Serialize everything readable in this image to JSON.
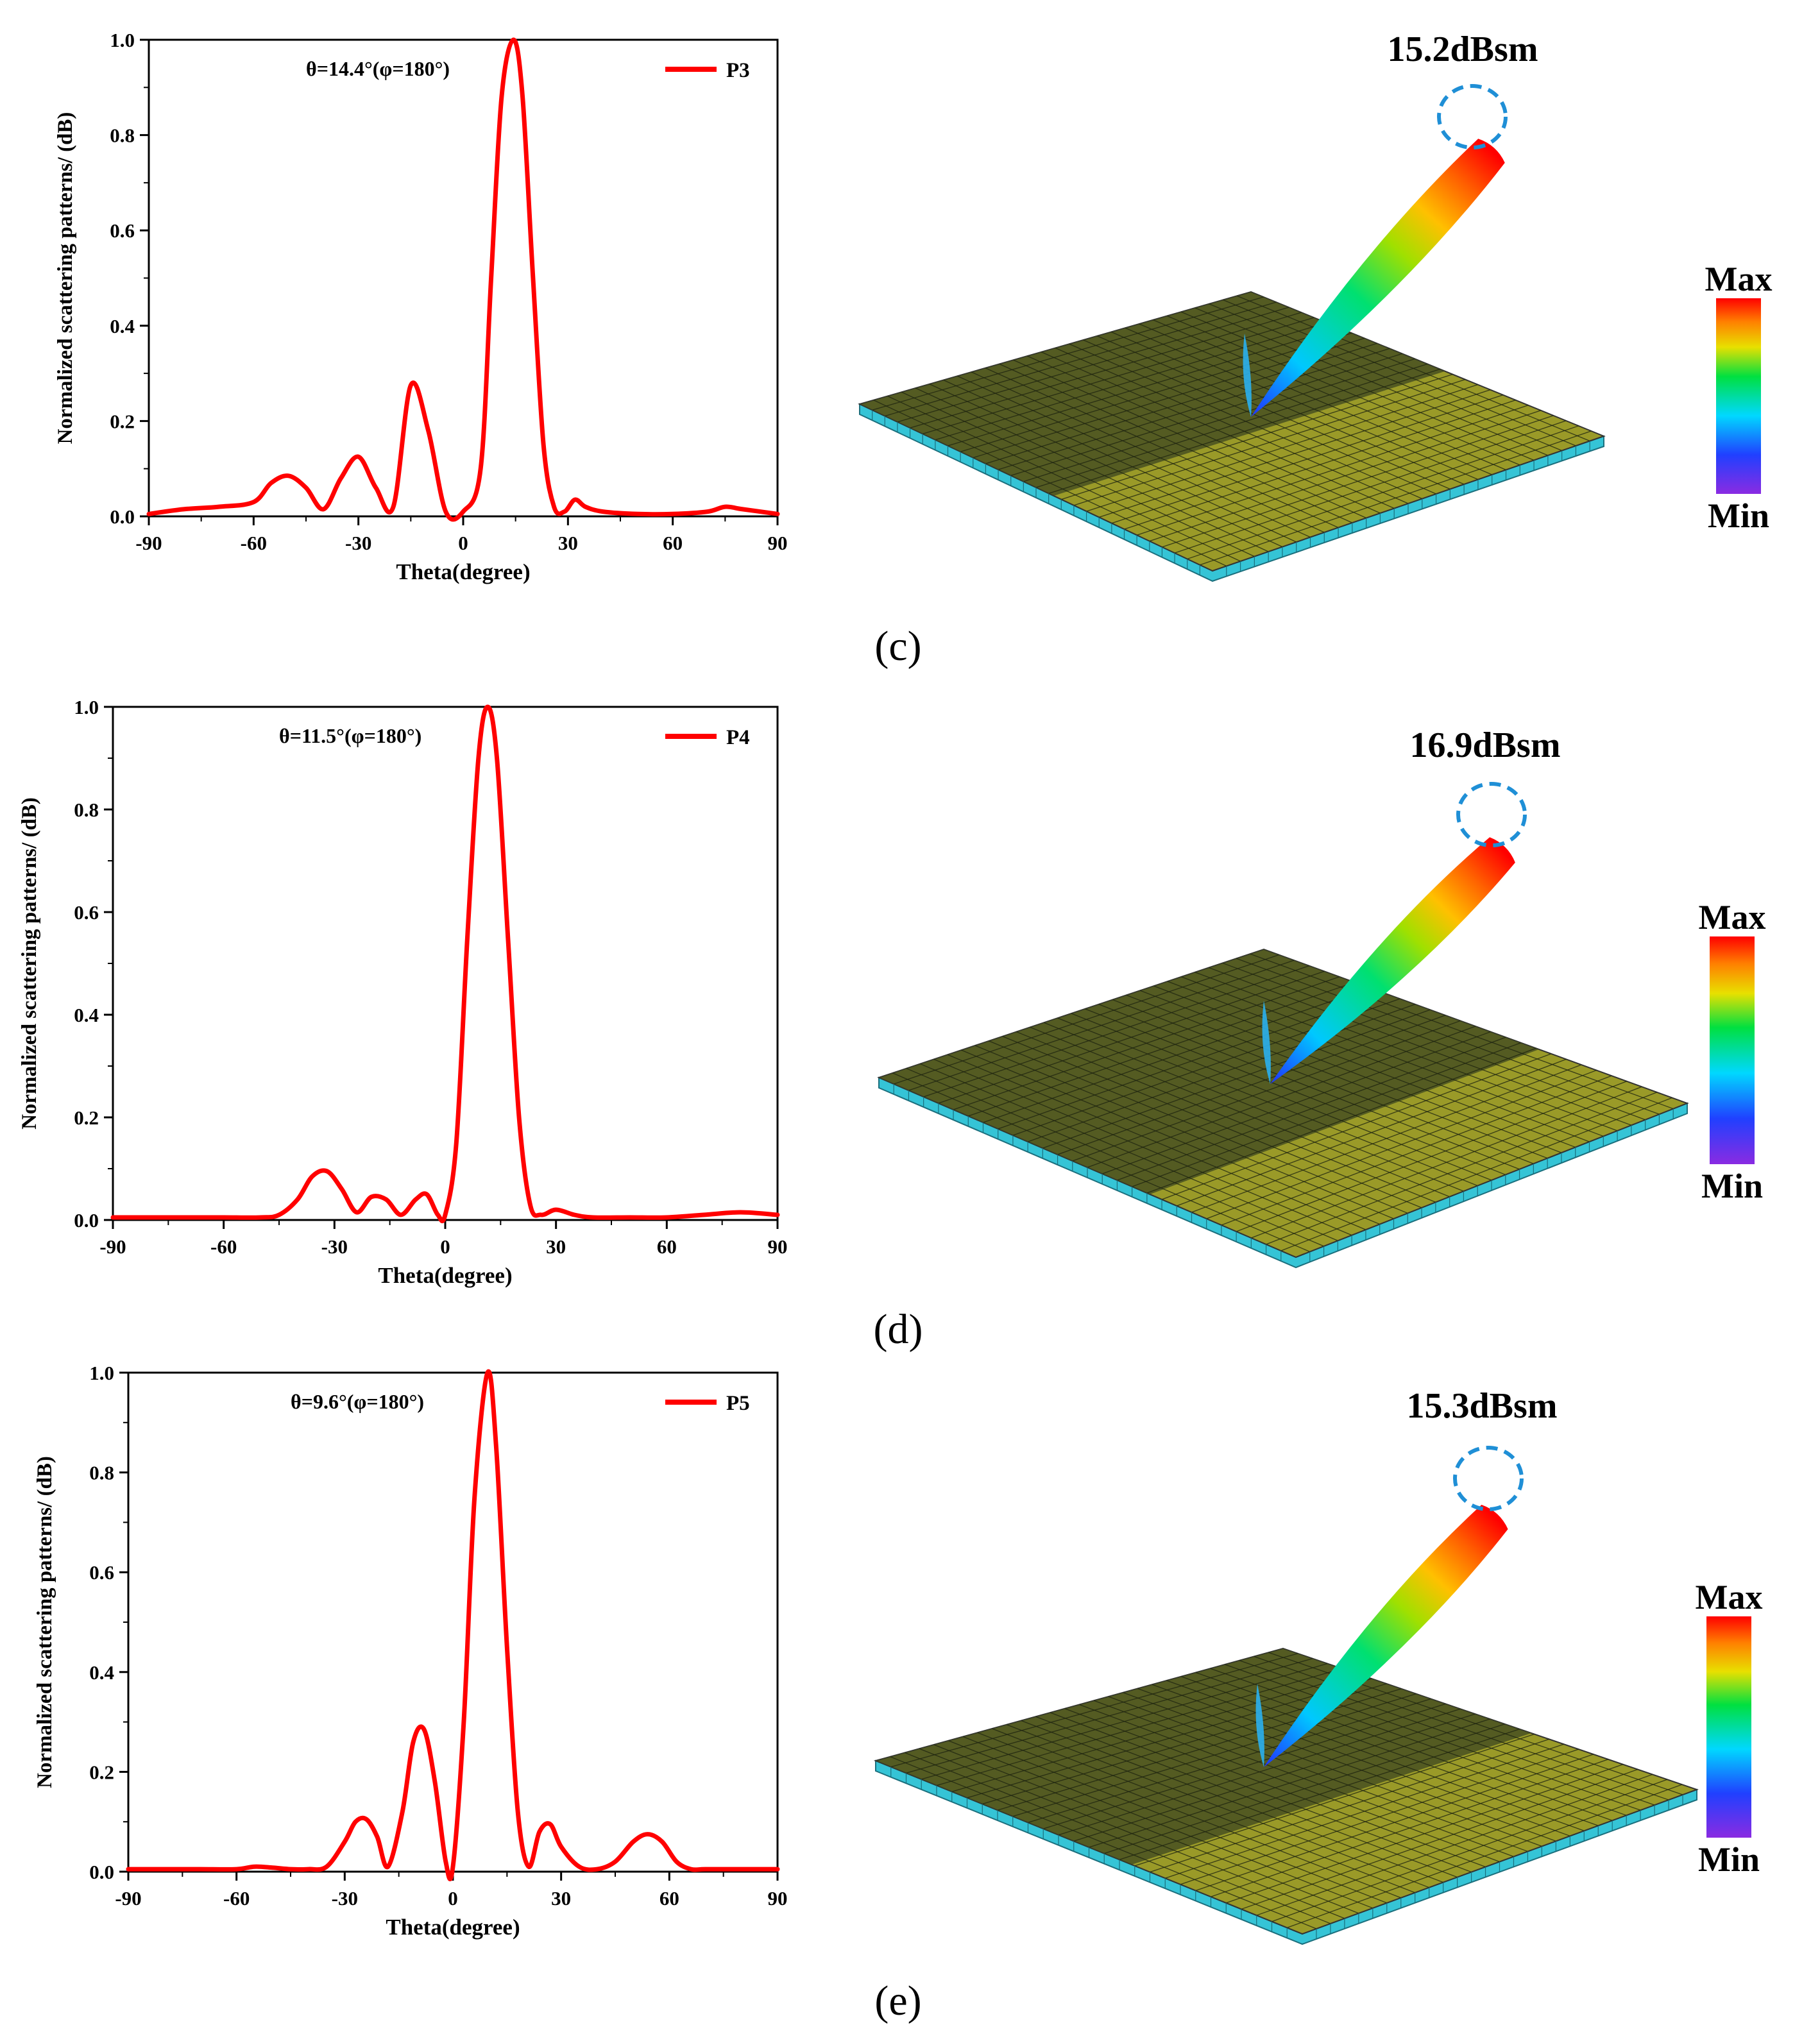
{
  "panels": [
    {
      "label": "(c)",
      "annotation": "15.2dBsm",
      "scale_max": "Max",
      "scale_min": "Min"
    },
    {
      "label": "(d)",
      "annotation": "16.9dBsm",
      "scale_max": "Max",
      "scale_min": "Min"
    },
    {
      "label": "(e)",
      "annotation": "15.3dBsm",
      "scale_max": "Max",
      "scale_min": "Min"
    }
  ],
  "colors": {
    "curve": "#ff0000",
    "ring": "#1f8fd6",
    "plate": "#9a9a28",
    "plate_edge": "#35c4d6"
  },
  "chart_data": [
    {
      "type": "line",
      "xlabel": "Theta(degree)",
      "ylabel": "Normalized scattering patterns/ (dB)",
      "xlim": [
        -90,
        90
      ],
      "ylim": [
        0,
        1
      ],
      "xticks": [
        -90,
        -60,
        -30,
        0,
        30,
        60,
        90
      ],
      "yticks": [
        "0.0",
        "0.2",
        "0.4",
        "0.6",
        "0.8",
        "1.0"
      ],
      "annotation": "θ=14.4°(φ=180°)",
      "series": [
        {
          "name": "P3",
          "x": [
            -90,
            -80,
            -70,
            -60,
            -55,
            -50,
            -45,
            -40,
            -35,
            -30,
            -25,
            -20,
            -15,
            -10,
            -5,
            0,
            5,
            8,
            11,
            14.4,
            17,
            20,
            23,
            26,
            29,
            32,
            35,
            40,
            50,
            60,
            70,
            75,
            80,
            90
          ],
          "y": [
            0.005,
            0.015,
            0.02,
            0.03,
            0.07,
            0.085,
            0.06,
            0.015,
            0.08,
            0.125,
            0.06,
            0.02,
            0.275,
            0.18,
            0.01,
            0.01,
            0.1,
            0.5,
            0.88,
            1.0,
            0.88,
            0.5,
            0.15,
            0.02,
            0.01,
            0.035,
            0.02,
            0.01,
            0.005,
            0.005,
            0.01,
            0.02,
            0.015,
            0.005
          ]
        }
      ]
    },
    {
      "type": "line",
      "xlabel": "Theta(degree)",
      "ylabel": "Normalized scattering patterns/ (dB)",
      "xlim": [
        -90,
        90
      ],
      "ylim": [
        0,
        1
      ],
      "xticks": [
        -90,
        -60,
        -30,
        0,
        30,
        60,
        90
      ],
      "yticks": [
        "0.0",
        "0.2",
        "0.4",
        "0.6",
        "0.8",
        "1.0"
      ],
      "annotation": "θ=11.5°(φ=180°)",
      "series": [
        {
          "name": "P4",
          "x": [
            -90,
            -80,
            -70,
            -60,
            -50,
            -45,
            -40,
            -36,
            -32,
            -28,
            -24,
            -20,
            -16,
            -12,
            -8,
            -5,
            -2,
            0,
            3,
            6,
            9,
            11.5,
            14,
            17,
            20,
            23,
            26,
            30,
            35,
            40,
            50,
            60,
            70,
            80,
            90
          ],
          "y": [
            0.005,
            0.005,
            0.005,
            0.005,
            0.005,
            0.01,
            0.04,
            0.085,
            0.095,
            0.06,
            0.015,
            0.045,
            0.04,
            0.01,
            0.04,
            0.05,
            0.01,
            0.01,
            0.15,
            0.55,
            0.9,
            1.0,
            0.9,
            0.55,
            0.2,
            0.03,
            0.01,
            0.02,
            0.01,
            0.005,
            0.005,
            0.005,
            0.01,
            0.015,
            0.01
          ]
        }
      ]
    },
    {
      "type": "line",
      "xlabel": "Theta(degree)",
      "ylabel": "Normalized scattering patterns/ (dB)",
      "xlim": [
        -90,
        90
      ],
      "ylim": [
        0,
        1
      ],
      "xticks": [
        -90,
        -60,
        -30,
        0,
        30,
        60,
        90
      ],
      "yticks": [
        "0.0",
        "0.2",
        "0.4",
        "0.6",
        "0.8",
        "1.0"
      ],
      "annotation": "θ=9.6°(φ=180°)",
      "series": [
        {
          "name": "P5",
          "x": [
            -90,
            -80,
            -70,
            -60,
            -55,
            -50,
            -45,
            -40,
            -35,
            -30,
            -27,
            -24,
            -21,
            -18,
            -14,
            -11,
            -8,
            -5,
            -2,
            0,
            3,
            6,
            9.6,
            12,
            15,
            18,
            21,
            24,
            27,
            30,
            35,
            40,
            45,
            50,
            54,
            58,
            62,
            66,
            70,
            80,
            90
          ],
          "y": [
            0.005,
            0.005,
            0.005,
            0.005,
            0.01,
            0.008,
            0.005,
            0.005,
            0.01,
            0.06,
            0.1,
            0.105,
            0.07,
            0.01,
            0.12,
            0.26,
            0.285,
            0.18,
            0.02,
            0.01,
            0.3,
            0.75,
            1.0,
            0.85,
            0.45,
            0.12,
            0.01,
            0.08,
            0.095,
            0.05,
            0.01,
            0.005,
            0.02,
            0.06,
            0.075,
            0.06,
            0.02,
            0.005,
            0.005,
            0.005,
            0.005
          ]
        }
      ]
    }
  ]
}
